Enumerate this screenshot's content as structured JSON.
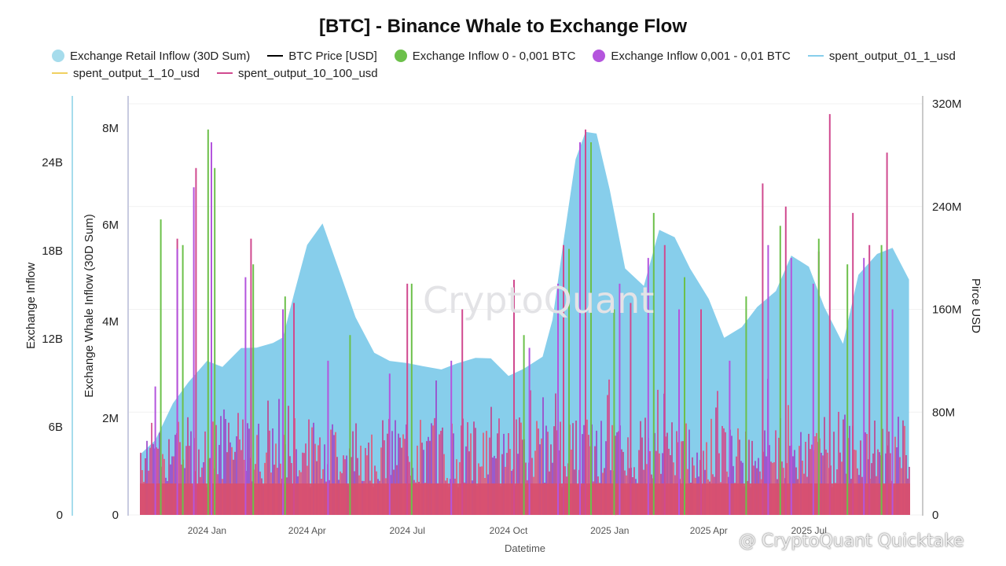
{
  "chart_data": {
    "type": "area",
    "title": "[BTC] - Binance Whale to Exchange Flow",
    "xlabel": "Datetime",
    "ylabels": {
      "outer_left": "Exchange Inflow",
      "inner_left": "Exchange Whale Inflow (30D Sum)",
      "right": "Pirce USD"
    },
    "x_range": [
      "2023-11-01",
      "2025-10-01"
    ],
    "x_ticks": [
      "2024 Jan",
      "2024 Apr",
      "2024 Jul",
      "2024 Oct",
      "2025 Jan",
      "2025 Apr",
      "2025 Jul"
    ],
    "y_axes": {
      "outer_left": {
        "range": [
          0,
          28000000000
        ],
        "tick_values": [
          0,
          6000000000,
          12000000000,
          18000000000,
          24000000000
        ],
        "tick_labels": [
          "0",
          "6B",
          "12B",
          "18B",
          "24B"
        ]
      },
      "inner_left": {
        "range": [
          0,
          8500000
        ],
        "tick_values": [
          0,
          2000000,
          4000000,
          6000000,
          8000000
        ],
        "tick_labels": [
          "0",
          "2M",
          "4M",
          "6M",
          "8M"
        ]
      },
      "right": {
        "range": [
          0,
          320000000
        ],
        "tick_values": [
          0,
          80000000,
          160000000,
          240000000,
          320000000
        ],
        "tick_labels": [
          "0",
          "80M",
          "160M",
          "240M",
          "320M"
        ]
      }
    },
    "legend": {
      "placement": "top",
      "entries": [
        {
          "label": "Exchange Retail Inflow (30D Sum)",
          "symbol": "dot",
          "color": "#a6dcec"
        },
        {
          "label": "BTC Price [USD]",
          "symbol": "line",
          "color": "#000000"
        },
        {
          "label": "Exchange Inflow 0 - 0,001 BTC",
          "symbol": "dot",
          "color": "#6cc04a"
        },
        {
          "label": "Exchange Inflow 0,001 - 0,01 BTC",
          "symbol": "dot",
          "color": "#b455dd"
        },
        {
          "label": "spent_output_01_1_usd",
          "symbol": "line",
          "color": "#87ceeb"
        },
        {
          "label": "spent_output_1_10_usd",
          "symbol": "line",
          "color": "#f0d060"
        },
        {
          "label": "spent_output_10_100_usd",
          "symbol": "line",
          "color": "#d04a8f"
        }
      ]
    },
    "series": [
      {
        "name": "spent_output_01_1_usd",
        "kind": "area",
        "axis": "right",
        "color": "#87ceeb",
        "x": [
          "2023-11-01",
          "2023-11-15",
          "2023-12-01",
          "2023-12-15",
          "2024-01-01",
          "2024-01-15",
          "2024-02-01",
          "2024-02-15",
          "2024-03-01",
          "2024-03-10",
          "2024-03-20",
          "2024-04-01",
          "2024-04-15",
          "2024-05-01",
          "2024-05-15",
          "2024-06-01",
          "2024-06-15",
          "2024-07-01",
          "2024-07-15",
          "2024-08-01",
          "2024-08-15",
          "2024-09-01",
          "2024-09-15",
          "2024-10-01",
          "2024-10-15",
          "2024-11-01",
          "2024-11-10",
          "2024-11-20",
          "2024-12-01",
          "2024-12-10",
          "2024-12-20",
          "2025-01-01",
          "2025-01-15",
          "2025-02-01",
          "2025-02-15",
          "2025-03-01",
          "2025-03-15",
          "2025-04-01",
          "2025-04-15",
          "2025-05-01",
          "2025-05-15",
          "2025-06-01",
          "2025-06-15",
          "2025-07-01",
          "2025-07-15",
          "2025-08-01",
          "2025-08-15",
          "2025-09-01",
          "2025-09-15",
          "2025-09-30"
        ],
        "values": [
          45000000,
          60000000,
          85000000,
          105000000,
          118000000,
          117000000,
          128000000,
          132000000,
          132000000,
          140000000,
          170000000,
          212000000,
          225000000,
          190000000,
          152000000,
          128000000,
          118000000,
          120000000,
          114000000,
          115000000,
          116000000,
          124000000,
          120000000,
          110000000,
          112000000,
          125000000,
          150000000,
          215000000,
          275000000,
          300000000,
          295000000,
          255000000,
          190000000,
          180000000,
          220000000,
          218000000,
          190000000,
          170000000,
          136000000,
          148000000,
          160000000,
          176000000,
          200000000,
          195000000,
          160000000,
          135000000,
          185000000,
          205000000,
          206000000,
          185000000
        ]
      },
      {
        "name": "spent_output_10_100_usd",
        "kind": "spikes",
        "axis": "right",
        "color": "#d04a8f",
        "x": [
          "2023-12-05",
          "2023-12-22",
          "2024-01-05",
          "2024-02-10",
          "2024-03-20",
          "2024-07-01",
          "2024-08-20",
          "2024-10-06",
          "2024-11-20",
          "2024-12-10",
          "2025-01-20",
          "2025-02-20",
          "2025-03-25",
          "2025-05-20",
          "2025-06-10",
          "2025-07-10",
          "2025-07-20",
          "2025-08-10",
          "2025-08-25",
          "2025-09-10"
        ],
        "values": [
          215000000,
          270000000,
          275000000,
          215000000,
          165000000,
          180000000,
          160000000,
          183000000,
          210000000,
          300000000,
          165000000,
          210000000,
          160000000,
          258000000,
          240000000,
          205000000,
          312000000,
          235000000,
          210000000,
          282000000
        ]
      },
      {
        "name": "Exchange Inflow 0,001 - 0,01 BTC",
        "kind": "spikes",
        "axis": "right",
        "color": "#b455dd",
        "x": [
          "2023-11-15",
          "2023-12-05",
          "2023-12-20",
          "2024-01-05",
          "2024-02-05",
          "2024-03-10",
          "2024-04-20",
          "2024-06-15",
          "2024-08-10",
          "2024-10-20",
          "2024-11-15",
          "2024-12-05",
          "2025-01-10",
          "2025-02-05",
          "2025-03-05",
          "2025-04-20",
          "2025-05-25",
          "2025-06-15",
          "2025-07-05",
          "2025-08-20",
          "2025-09-15"
        ],
        "values": [
          100000000,
          207000000,
          255000000,
          290000000,
          185000000,
          160000000,
          120000000,
          110000000,
          120000000,
          130000000,
          180000000,
          290000000,
          180000000,
          200000000,
          160000000,
          120000000,
          210000000,
          200000000,
          180000000,
          200000000,
          160000000
        ]
      },
      {
        "name": "Exchange Inflow 0 - 0,001 BTC",
        "kind": "spikes",
        "axis": "right",
        "color": "#6cc04a",
        "x": [
          "2023-11-20",
          "2023-12-10",
          "2024-01-02",
          "2024-01-08",
          "2024-02-12",
          "2024-03-12",
          "2024-05-10",
          "2024-07-05",
          "2024-10-15",
          "2024-11-25",
          "2024-12-15",
          "2025-01-05",
          "2025-02-10",
          "2025-03-10",
          "2025-05-05",
          "2025-06-05",
          "2025-07-10",
          "2025-08-05",
          "2025-09-05"
        ],
        "values": [
          230000000,
          210000000,
          300000000,
          270000000,
          195000000,
          170000000,
          140000000,
          180000000,
          140000000,
          207000000,
          290000000,
          160000000,
          235000000,
          185000000,
          170000000,
          225000000,
          215000000,
          195000000,
          210000000
        ]
      }
    ],
    "annotations": [
      "CryptoQuant",
      "@ CryptoQuant Quicktake"
    ]
  }
}
